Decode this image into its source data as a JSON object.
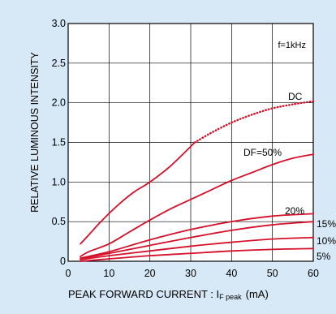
{
  "chart_data": {
    "type": "line",
    "annotation": "f=1kHz",
    "ylabel": "RELATIVE LUMINOUS INTENSITY",
    "xlabel": {
      "main": "PEAK FORWARD CURRENT : I",
      "sub": "F peak",
      "unit": "(mA)"
    },
    "xlim": [
      0,
      60
    ],
    "ylim": [
      0,
      3.0
    ],
    "x_ticks": [
      0,
      10,
      20,
      30,
      40,
      50,
      60
    ],
    "y_ticks": [
      0,
      0.5,
      1.0,
      1.5,
      2.0,
      2.5,
      3.0
    ],
    "x_tick_labels": [
      "0",
      "10",
      "20",
      "30",
      "40",
      "50",
      "60"
    ],
    "y_tick_labels": [
      "0",
      "0.5",
      "1.0",
      "1.5",
      "2.0",
      "2.5",
      "3.0"
    ],
    "grid": true,
    "line_color": "#d4102a",
    "series": [
      {
        "name": "DC",
        "style": "dotted",
        "x": [
          31,
          35,
          40,
          45,
          50,
          55,
          60
        ],
        "y": [
          1.5,
          1.62,
          1.75,
          1.85,
          1.93,
          1.98,
          2.02
        ]
      },
      {
        "name": "DF=50%",
        "style": "solid",
        "x": [
          3,
          5,
          8,
          12,
          16,
          20,
          25,
          31
        ],
        "y": [
          0.22,
          0.33,
          0.5,
          0.7,
          0.87,
          1.0,
          1.2,
          1.5
        ]
      },
      {
        "name": "DF=50%",
        "style": "solid",
        "x": [
          3,
          5,
          10,
          15,
          20,
          25,
          30,
          35,
          40,
          45,
          50,
          55,
          60
        ],
        "y": [
          0.06,
          0.12,
          0.22,
          0.37,
          0.52,
          0.66,
          0.78,
          0.9,
          1.02,
          1.12,
          1.22,
          1.3,
          1.35
        ]
      },
      {
        "name": "20%",
        "style": "solid",
        "x": [
          3,
          10,
          20,
          30,
          40,
          50,
          60
        ],
        "y": [
          0.04,
          0.12,
          0.27,
          0.4,
          0.5,
          0.57,
          0.6
        ]
      },
      {
        "name": "15%",
        "style": "solid",
        "x": [
          3,
          10,
          20,
          30,
          40,
          50,
          60
        ],
        "y": [
          0.03,
          0.1,
          0.2,
          0.3,
          0.39,
          0.46,
          0.5
        ]
      },
      {
        "name": "10%",
        "style": "solid",
        "x": [
          3,
          10,
          20,
          30,
          40,
          50,
          60
        ],
        "y": [
          0.02,
          0.07,
          0.13,
          0.19,
          0.24,
          0.28,
          0.3
        ]
      },
      {
        "name": "5%",
        "style": "solid",
        "x": [
          3,
          10,
          20,
          30,
          40,
          50,
          60
        ],
        "y": [
          0.0,
          0.03,
          0.07,
          0.1,
          0.13,
          0.15,
          0.16
        ]
      }
    ],
    "series_labels": [
      "DC",
      "DF=50%",
      "20%",
      "15%",
      "10%",
      "5%"
    ]
  }
}
